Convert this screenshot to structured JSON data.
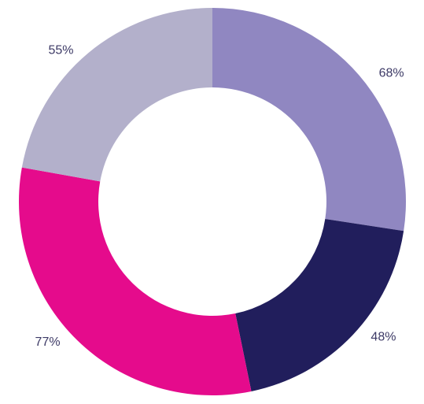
{
  "chart_data": {
    "type": "donut",
    "values": [
      68,
      48,
      77,
      55
    ],
    "value_labels": [
      "68%",
      "48%",
      "77%",
      "55%"
    ],
    "colors": [
      "#9087c1",
      "#211e5c",
      "#e50b8c",
      "#b3b0cb"
    ]
  }
}
